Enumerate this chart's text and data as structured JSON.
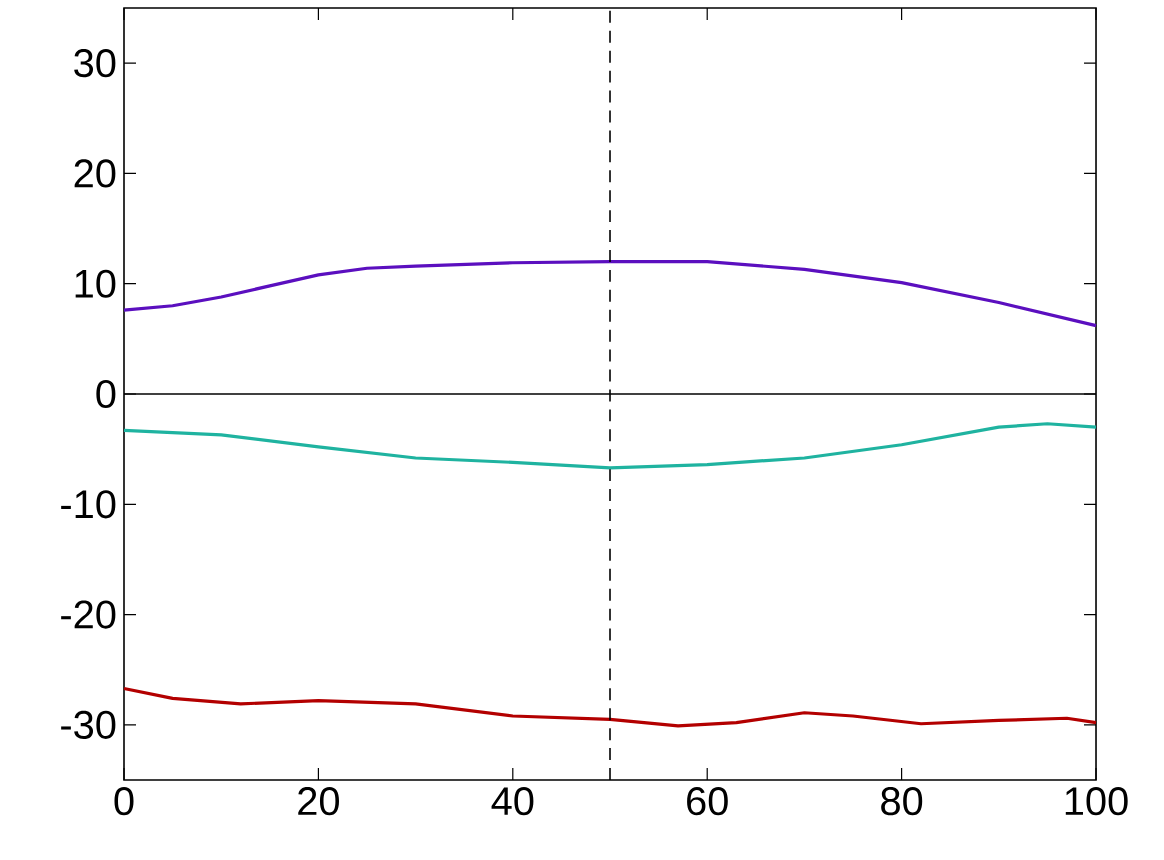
{
  "chart_data": {
    "type": "line",
    "xlim": [
      0,
      100
    ],
    "ylim": [
      -35,
      35
    ],
    "xticks": [
      0,
      20,
      40,
      60,
      80,
      100
    ],
    "yticks": [
      -30,
      -20,
      -10,
      0,
      10,
      20,
      30
    ],
    "grid": false,
    "line_style": "solid",
    "marker": "none",
    "ref_lines": [
      {
        "axis": "y",
        "value": 0,
        "color": "#000000",
        "line_style": "solid"
      },
      {
        "axis": "x",
        "value": 50,
        "color": "#000000",
        "line_style": "dashed"
      }
    ],
    "series": [
      {
        "color": "#5b0fbf",
        "x": [
          0,
          5,
          10,
          15,
          20,
          25,
          30,
          40,
          50,
          60,
          70,
          80,
          90,
          100
        ],
        "values": [
          7.6,
          8.0,
          8.8,
          9.8,
          10.8,
          11.4,
          11.6,
          11.9,
          12.0,
          12.0,
          11.3,
          10.1,
          8.3,
          6.2
        ]
      },
      {
        "color": "#1fb3a0",
        "x": [
          0,
          10,
          20,
          30,
          40,
          50,
          60,
          70,
          80,
          90,
          95,
          100
        ],
        "values": [
          -3.3,
          -3.7,
          -4.8,
          -5.8,
          -6.2,
          -6.7,
          -6.4,
          -5.8,
          -4.6,
          -3.0,
          -2.7,
          -3.0
        ]
      },
      {
        "color": "#b30000",
        "x": [
          0,
          5,
          12,
          20,
          30,
          40,
          50,
          57,
          63,
          70,
          75,
          82,
          90,
          97,
          100
        ],
        "values": [
          -26.7,
          -27.6,
          -28.1,
          -27.8,
          -28.1,
          -29.2,
          -29.5,
          -30.1,
          -29.8,
          -28.9,
          -29.2,
          -29.9,
          -29.6,
          -29.4,
          -29.8
        ]
      }
    ]
  }
}
